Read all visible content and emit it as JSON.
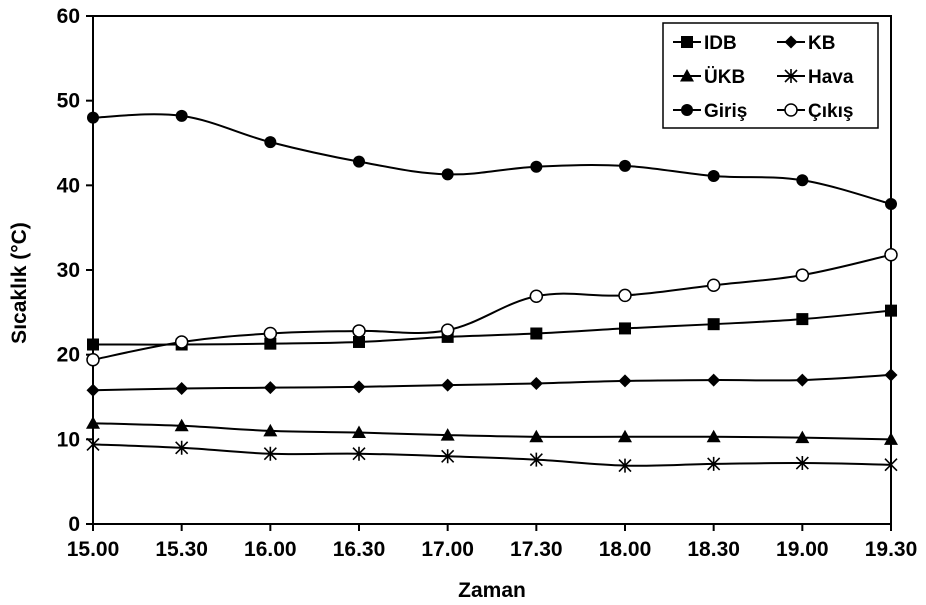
{
  "chart_data": {
    "type": "line",
    "xlabel": "Zaman",
    "ylabel": "Sıcaklık (°C)",
    "categories": [
      "15.00",
      "15.30",
      "16.00",
      "16.30",
      "17.00",
      "17.30",
      "18.00",
      "18.30",
      "19.00",
      "19.30"
    ],
    "ylim": [
      0,
      60
    ],
    "yticks": [
      "0",
      "10",
      "20",
      "30",
      "40",
      "50",
      "60"
    ],
    "grid": false,
    "legend_position": "top-right",
    "series": [
      {
        "name": "IDB",
        "marker": "square",
        "values": [
          21.2,
          21.2,
          21.3,
          21.5,
          22.1,
          22.5,
          23.1,
          23.6,
          24.2,
          25.2
        ]
      },
      {
        "name": "KB",
        "marker": "diamond",
        "values": [
          15.8,
          16.0,
          16.1,
          16.2,
          16.4,
          16.6,
          16.9,
          17.0,
          17.0,
          17.6
        ]
      },
      {
        "name": "ÜKB",
        "marker": "triangle",
        "values": [
          11.9,
          11.6,
          11.0,
          10.8,
          10.5,
          10.3,
          10.3,
          10.3,
          10.2,
          10.0
        ]
      },
      {
        "name": "Hava",
        "marker": "star",
        "values": [
          9.4,
          9.0,
          8.3,
          8.3,
          8.0,
          7.6,
          6.9,
          7.1,
          7.2,
          7.0
        ]
      },
      {
        "name": "Giriş",
        "marker": "filled-circle",
        "values": [
          48.0,
          48.2,
          45.1,
          42.8,
          41.3,
          42.2,
          42.3,
          41.1,
          40.6,
          37.8
        ]
      },
      {
        "name": "Çıkış",
        "marker": "open-circle",
        "values": [
          19.4,
          21.5,
          22.5,
          22.8,
          22.9,
          26.9,
          27.0,
          28.2,
          29.4,
          31.8
        ]
      }
    ]
  }
}
